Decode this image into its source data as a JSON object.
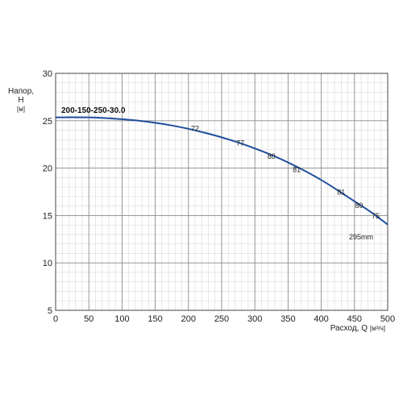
{
  "chart_data": {
    "type": "line",
    "title": "",
    "model_label": "200-150-250-30.0",
    "xlabel": "Расход, Q",
    "xlabel_unit": "[м³/ч]",
    "ylabel": "Напор, H",
    "ylabel_unit": "[м]",
    "xlim": [
      0,
      500
    ],
    "ylim": [
      5,
      30
    ],
    "x_ticks": [
      0,
      50,
      100,
      150,
      200,
      250,
      300,
      350,
      400,
      450,
      500
    ],
    "y_ticks": [
      5,
      10,
      15,
      20,
      25,
      30
    ],
    "grid": true,
    "series": [
      {
        "color": "#1f4e9c",
        "x": [
          0,
          25,
          50,
          75,
          100,
          125,
          150,
          175,
          200,
          225,
          250,
          275,
          300,
          325,
          350,
          375,
          400,
          425,
          450,
          475,
          500
        ],
        "y": [
          25.35,
          25.37,
          25.35,
          25.28,
          25.16,
          25.0,
          24.78,
          24.5,
          24.15,
          23.73,
          23.25,
          22.7,
          22.08,
          21.39,
          20.6,
          19.72,
          18.75,
          17.65,
          16.5,
          15.35,
          14.05
        ]
      }
    ],
    "annotations": [
      {
        "text": "72",
        "x": 210,
        "y": 23.9
      },
      {
        "text": "77",
        "x": 278,
        "y": 22.4
      },
      {
        "text": "80",
        "x": 325,
        "y": 21.0
      },
      {
        "text": "81",
        "x": 363,
        "y": 19.6
      },
      {
        "text": "81",
        "x": 430,
        "y": 17.2
      },
      {
        "text": "80",
        "x": 457,
        "y": 15.8
      },
      {
        "text": "75",
        "x": 482,
        "y": 14.7
      },
      {
        "text": "295mm",
        "x": 460,
        "y": 12.5
      }
    ]
  }
}
